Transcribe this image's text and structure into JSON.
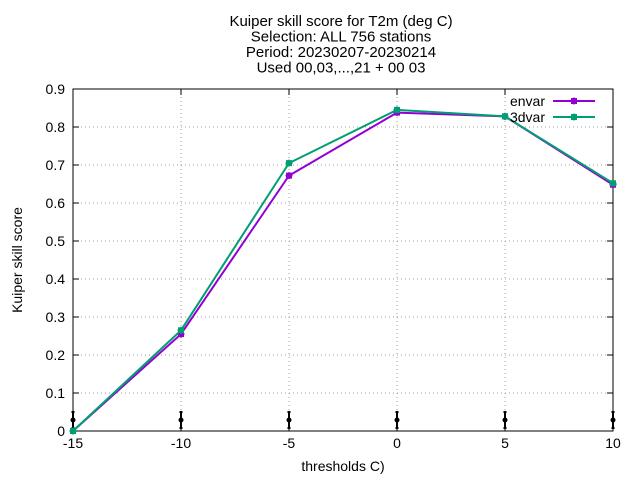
{
  "chart_data": {
    "type": "line",
    "title_lines": [
      "Kuiper skill score  for T2m (deg C)",
      "Selection: ALL    756 stations",
      "Period: 20230207-20230214",
      "Used 00,03,...,21 + 00 03"
    ],
    "xlabel": "thresholds C)",
    "ylabel": "Kuiper skill score",
    "xlim": [
      -15,
      10
    ],
    "ylim": [
      0,
      0.9
    ],
    "xticks": [
      -15,
      -10,
      -5,
      0,
      5,
      10
    ],
    "yticks": [
      0,
      0.1,
      0.2,
      0.3,
      0.4,
      0.5,
      0.6,
      0.7,
      0.8,
      0.9
    ],
    "ytick_labels": [
      "0",
      "0.1",
      "0.2",
      "0.3",
      "0.4",
      "0.5",
      "0.6",
      "0.7",
      "0.8",
      "0.9"
    ],
    "grid": true,
    "legend_position": "top-right",
    "x": [
      -15,
      -10,
      -5,
      0,
      5,
      10
    ],
    "series": [
      {
        "name": "envar",
        "color": "#9400d3",
        "values": [
          0.0,
          0.255,
          0.672,
          0.838,
          0.828,
          0.648
        ]
      },
      {
        "name": "3dvar",
        "color": "#009e73",
        "values": [
          0.0,
          0.265,
          0.705,
          0.845,
          0.828,
          0.652
        ]
      }
    ],
    "error_bar_markers_at": [
      -15,
      -10,
      -5,
      0,
      5,
      10
    ]
  }
}
